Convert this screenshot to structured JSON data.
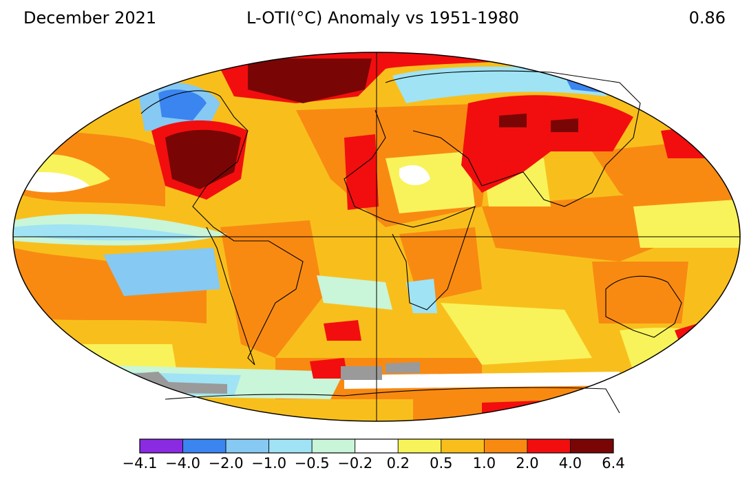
{
  "header": {
    "date": "December 2021",
    "title": "L-OTI(°C) Anomaly vs 1951-1980",
    "global_mean": "0.86"
  },
  "colors": {
    "violet": "#8a2be2",
    "blue_dark": "#3a85f0",
    "blue_mid": "#86c9f2",
    "blue_light": "#9fe3f5",
    "cyan_light": "#c9f5d9",
    "white": "#ffffff",
    "yellow": "#f8f35a",
    "orange_light": "#f8bf1c",
    "orange": "#f88a12",
    "red": "#f20e0e",
    "dark_red": "#7a0505",
    "no_data": "#9a9a9a"
  },
  "legend": {
    "bins": [
      {
        "color": "#8a2be2"
      },
      {
        "color": "#3a85f0"
      },
      {
        "color": "#86c9f2"
      },
      {
        "color": "#9fe3f5"
      },
      {
        "color": "#c9f5d9"
      },
      {
        "color": "#ffffff"
      },
      {
        "color": "#f8f35a"
      },
      {
        "color": "#f8bf1c"
      },
      {
        "color": "#f88a12"
      },
      {
        "color": "#f20e0e"
      },
      {
        "color": "#7a0505"
      }
    ],
    "ticks": [
      "−4.1",
      "−4.0",
      "−2.0",
      "−1.0",
      "−0.5",
      "−0.2",
      "0.2",
      "0.5",
      "1.0",
      "2.0",
      "4.0",
      "6.4"
    ]
  }
}
